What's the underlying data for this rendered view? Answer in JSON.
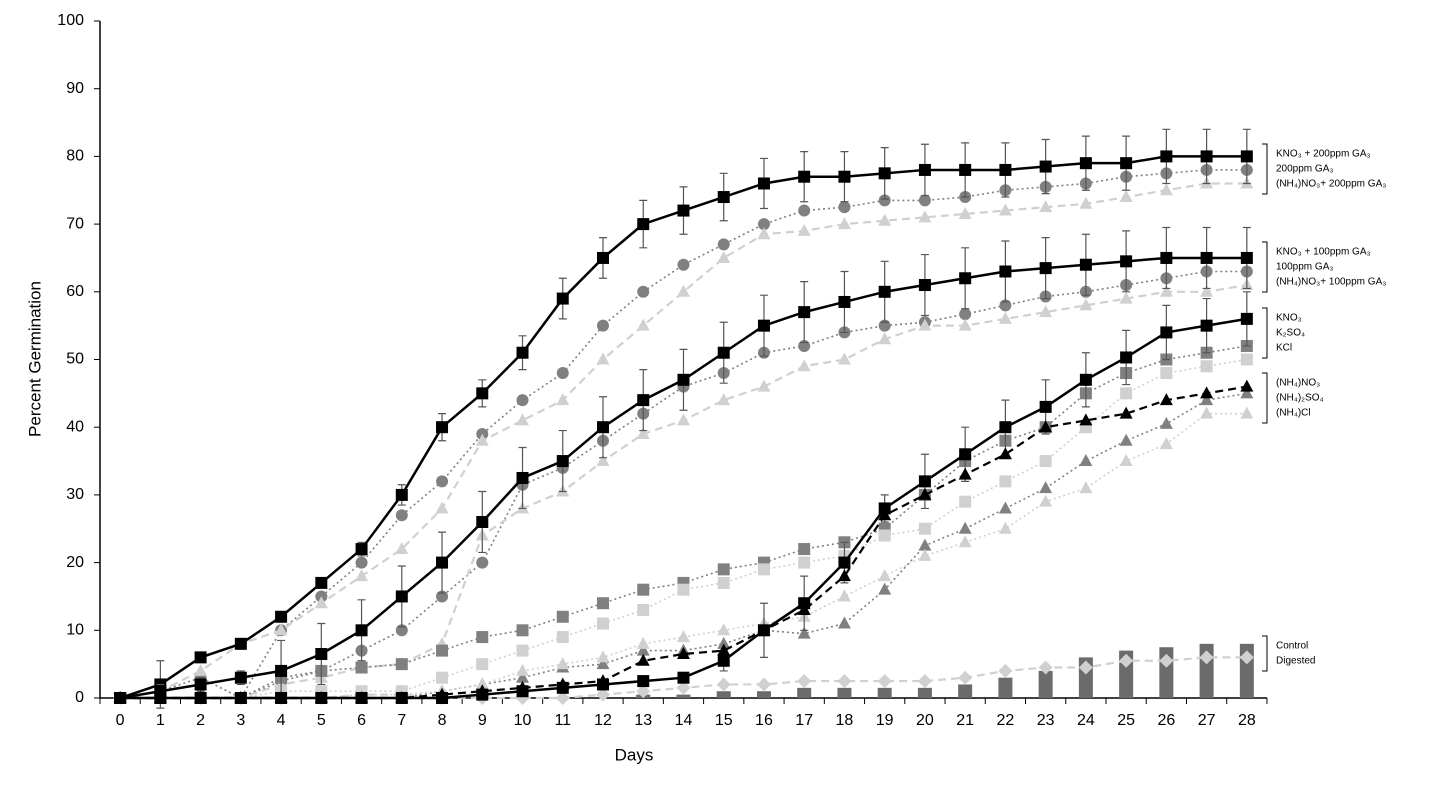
{
  "chart_data": {
    "type": "line",
    "x_label": "Days",
    "y_label": "Percent Germination",
    "x": [
      0,
      1,
      2,
      3,
      4,
      5,
      6,
      7,
      8,
      9,
      10,
      11,
      12,
      13,
      14,
      15,
      16,
      17,
      18,
      19,
      20,
      21,
      22,
      23,
      24,
      25,
      26,
      27,
      28
    ],
    "ylim": [
      0,
      100
    ],
    "yticks": [
      0,
      10,
      20,
      30,
      40,
      50,
      60,
      70,
      80,
      90,
      100
    ],
    "grid": false,
    "series": [
      {
        "name": "KNO₃ + 200ppm GA₃",
        "color": "#000000",
        "marker": "square",
        "line_style": "solid",
        "values": [
          0,
          2,
          6,
          8,
          12,
          17,
          22,
          30,
          40,
          45,
          51,
          59,
          65,
          70,
          72,
          74,
          76,
          77,
          77,
          77.5,
          78,
          78,
          78,
          78.5,
          79,
          79,
          80,
          80,
          80
        ],
        "errors": [
          0,
          3.5,
          0.5,
          0.5,
          0.5,
          0.5,
          1,
          1.5,
          2,
          2,
          2.5,
          3,
          3,
          3.5,
          3.5,
          3.5,
          3.7,
          3.7,
          3.7,
          3.8,
          3.8,
          4,
          4,
          4,
          4,
          4,
          4,
          4,
          4
        ]
      },
      {
        "name": "200ppm GA₃",
        "color": "#808080",
        "marker": "circle",
        "line_style": "dotted",
        "values": [
          0,
          1,
          3,
          0,
          10,
          15,
          20,
          27,
          32,
          39,
          44,
          48,
          55,
          60,
          64,
          67,
          70,
          72,
          72.5,
          73.5,
          73.5,
          74,
          75,
          75.5,
          76,
          77,
          77.5,
          78,
          78
        ]
      },
      {
        "name": "(NH₄)NO₃+ 200ppm GA₃",
        "color": "#d0d0d0",
        "marker": "triangle",
        "line_style": "dashed",
        "values": [
          0,
          1,
          4,
          8,
          10,
          14,
          18,
          22,
          28,
          38,
          41,
          44,
          50,
          55,
          60,
          65,
          68.5,
          69,
          70,
          70.5,
          71,
          71.5,
          72,
          72.5,
          73,
          74,
          75,
          76,
          76
        ]
      },
      {
        "name": "KNO₃ + 100ppm GA₃",
        "color": "#000000",
        "marker": "square",
        "line_style": "solid",
        "values": [
          0,
          1,
          2,
          3,
          4,
          6.5,
          10,
          15,
          20,
          26,
          32.5,
          35,
          40,
          44,
          47,
          51,
          55,
          57,
          58.5,
          60,
          61,
          62,
          63,
          63.5,
          64,
          64.5,
          65,
          65,
          65
        ],
        "errors": [
          0,
          1,
          1,
          1,
          4.5,
          4.5,
          4.5,
          4.5,
          4.5,
          4.5,
          4.5,
          4.5,
          4.5,
          4.5,
          4.5,
          4.5,
          4.5,
          4.5,
          4.5,
          4.5,
          4.5,
          4.5,
          4.5,
          4.5,
          4.5,
          4.5,
          4.5,
          4.5,
          4.5
        ]
      },
      {
        "name": "100ppm GA₃",
        "color": "#808080",
        "marker": "circle",
        "line_style": "dotted",
        "values": [
          0,
          0,
          0,
          0,
          2.5,
          4,
          7,
          10,
          15,
          20,
          31.5,
          34,
          38,
          42,
          46,
          48,
          51,
          52,
          54,
          55,
          55.5,
          56.7,
          58,
          59.3,
          60,
          61,
          62,
          63,
          63
        ]
      },
      {
        "name": "(NH₄)NO₃+ 100ppm GA₃",
        "color": "#d0d0d0",
        "marker": "triangle",
        "line_style": "dashed",
        "values": [
          0,
          0,
          0,
          0,
          2,
          3,
          4.5,
          5,
          8,
          24,
          28,
          30.5,
          35,
          39,
          41,
          44,
          46,
          49,
          50,
          53,
          55,
          55,
          56,
          57,
          58,
          59,
          60,
          60,
          61
        ]
      },
      {
        "name": "KNO₃",
        "color": "#000000",
        "marker": "square",
        "line_style": "solid",
        "values": [
          0,
          0,
          0,
          0,
          0,
          0,
          0,
          0,
          0,
          0.5,
          1,
          1.5,
          2,
          2.5,
          3,
          5.5,
          10,
          14,
          20,
          28,
          32,
          36,
          40,
          43,
          47,
          50.3,
          54,
          55,
          56
        ],
        "errors": [
          0,
          0,
          0,
          0,
          0,
          0,
          0,
          0,
          0,
          0,
          0,
          0,
          0,
          0,
          0,
          1.5,
          4,
          4,
          3,
          2,
          4,
          4,
          4,
          4,
          4,
          4,
          4,
          4,
          4
        ]
      },
      {
        "name": "K₂SO₄",
        "color": "#808080",
        "marker": "square",
        "line_style": "dotted",
        "values": [
          0,
          0,
          0,
          0,
          3,
          4,
          4.5,
          5,
          7,
          9,
          10,
          12,
          14,
          16,
          17,
          19,
          20,
          22,
          23,
          25,
          30,
          35,
          38,
          40,
          45,
          48,
          50,
          51,
          52
        ]
      },
      {
        "name": "KCl",
        "color": "#d0d0d0",
        "marker": "square",
        "line_style": "dotted",
        "values": [
          0,
          0,
          0,
          0,
          1,
          1,
          1,
          1,
          3,
          5,
          7,
          9,
          11,
          13,
          16,
          17,
          19,
          20,
          21,
          24,
          25,
          29,
          32,
          35,
          40,
          45,
          48,
          49,
          50
        ]
      },
      {
        "name": "(NH₄)NO₃",
        "color": "#000000",
        "marker": "triangle",
        "line_style": "dashed",
        "values": [
          0,
          0,
          0,
          0,
          0,
          0,
          0,
          0,
          0.5,
          1,
          1.5,
          2,
          2.5,
          5.5,
          6.5,
          7,
          10,
          13,
          18,
          27,
          30,
          33,
          36,
          40,
          41,
          42,
          44,
          45,
          46
        ]
      },
      {
        "name": "(NH₄)₂SO₄",
        "color": "#808080",
        "marker": "triangle",
        "line_style": "dotted",
        "values": [
          0,
          0,
          0,
          0,
          0,
          0,
          0,
          0,
          1,
          2,
          3,
          4.5,
          5,
          7,
          7,
          8,
          10,
          9.5,
          11,
          16,
          22.5,
          25,
          28,
          31,
          35,
          38,
          40.5,
          44,
          45
        ]
      },
      {
        "name": "(NH₄)Cl",
        "color": "#d0d0d0",
        "marker": "triangle",
        "line_style": "dotted",
        "values": [
          0,
          0,
          0,
          0,
          0,
          0,
          0.5,
          0.5,
          1,
          2,
          4,
          5,
          6,
          8,
          9,
          10,
          11,
          12,
          15,
          18,
          21,
          23,
          25,
          29,
          31,
          35,
          37.5,
          42,
          42
        ]
      },
      {
        "name": "Control",
        "color": "#6b6b6b",
        "marker": "bar",
        "line_style": "none",
        "values": [
          0,
          0,
          0,
          0,
          0,
          0,
          0,
          0,
          0,
          0,
          0,
          0,
          0,
          0.5,
          0.5,
          1,
          1,
          1.5,
          1.5,
          1.5,
          1.5,
          2,
          3,
          4,
          6,
          7,
          7.5,
          8,
          8
        ]
      },
      {
        "name": "Digested",
        "color": "#d0d0d0",
        "marker": "diamond",
        "line_style": "dashed",
        "values": [
          0,
          0,
          0,
          0,
          0,
          0,
          0.5,
          0.5,
          0,
          0,
          0,
          0,
          0.5,
          1,
          1.5,
          2,
          2,
          2.5,
          2.5,
          2.5,
          2.5,
          3,
          4,
          4.5,
          4.5,
          5.5,
          5.5,
          6,
          6
        ]
      }
    ]
  }
}
